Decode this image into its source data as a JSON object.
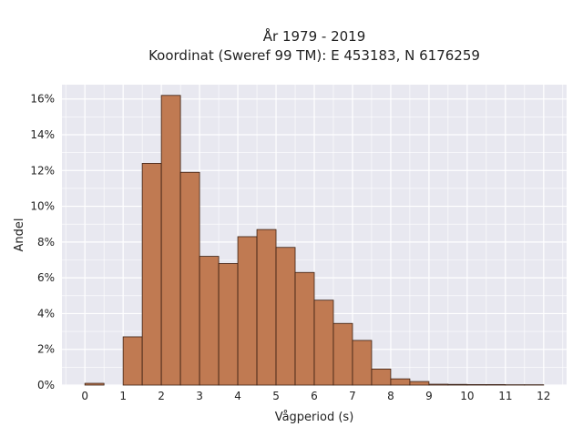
{
  "chart_data": {
    "type": "bar",
    "title": "År 1979 - 2019",
    "subtitle": "Koordinat (Sweref 99 TM): E 453183, N 6176259",
    "xlabel": "Vågperiod (s)",
    "ylabel": "Andel",
    "xlim": [
      -0.6,
      12.6
    ],
    "ylim": [
      0,
      16.8
    ],
    "x_ticks": [
      0,
      1,
      2,
      3,
      4,
      5,
      6,
      7,
      8,
      9,
      10,
      11,
      12
    ],
    "y_ticks": [
      0,
      2,
      4,
      6,
      8,
      10,
      12,
      14,
      16
    ],
    "y_tick_suffix": "%",
    "bin_width": 0.5,
    "bins": [
      {
        "start": 0.0,
        "value": 0.1
      },
      {
        "start": 1.0,
        "value": 2.7
      },
      {
        "start": 1.5,
        "value": 12.4
      },
      {
        "start": 2.0,
        "value": 16.2
      },
      {
        "start": 2.5,
        "value": 11.9
      },
      {
        "start": 3.0,
        "value": 7.2
      },
      {
        "start": 3.5,
        "value": 6.8
      },
      {
        "start": 4.0,
        "value": 8.3
      },
      {
        "start": 4.5,
        "value": 8.7
      },
      {
        "start": 5.0,
        "value": 7.7
      },
      {
        "start": 5.5,
        "value": 6.3
      },
      {
        "start": 6.0,
        "value": 4.75
      },
      {
        "start": 6.5,
        "value": 3.45
      },
      {
        "start": 7.0,
        "value": 2.5
      },
      {
        "start": 7.5,
        "value": 0.9
      },
      {
        "start": 8.0,
        "value": 0.35
      },
      {
        "start": 8.5,
        "value": 0.2
      },
      {
        "start": 9.0,
        "value": 0.05
      },
      {
        "start": 9.5,
        "value": 0.04
      },
      {
        "start": 10.0,
        "value": 0.03
      },
      {
        "start": 10.5,
        "value": 0.03
      },
      {
        "start": 11.0,
        "value": 0.02
      },
      {
        "start": 11.5,
        "value": 0.02
      }
    ],
    "grid": true,
    "legend": "none",
    "bar_color": "#c07a52",
    "bar_edge_color": "#3a1f12",
    "plot_background": "#e8e8f0",
    "grid_color": "#ffffff"
  }
}
